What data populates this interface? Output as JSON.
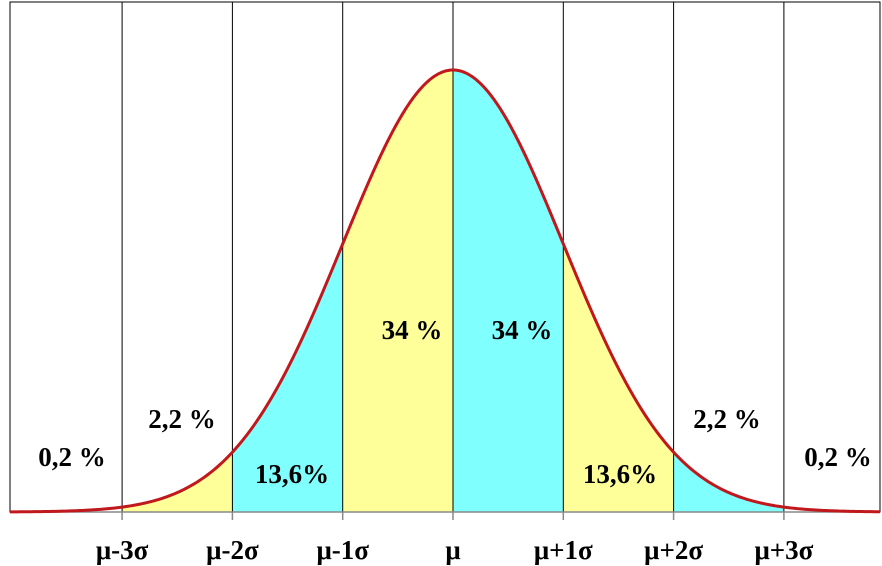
{
  "region_labels": [
    "0,2 %",
    "2,2 %",
    "13,6%",
    "34 %",
    "34 %",
    "13,6%",
    "2,2 %",
    "0,2 %"
  ],
  "axis_labels": [
    "μ-3σ",
    "μ-2σ",
    "μ-1σ",
    "μ",
    "μ+1σ",
    "μ+2σ",
    "μ+3σ"
  ]
}
